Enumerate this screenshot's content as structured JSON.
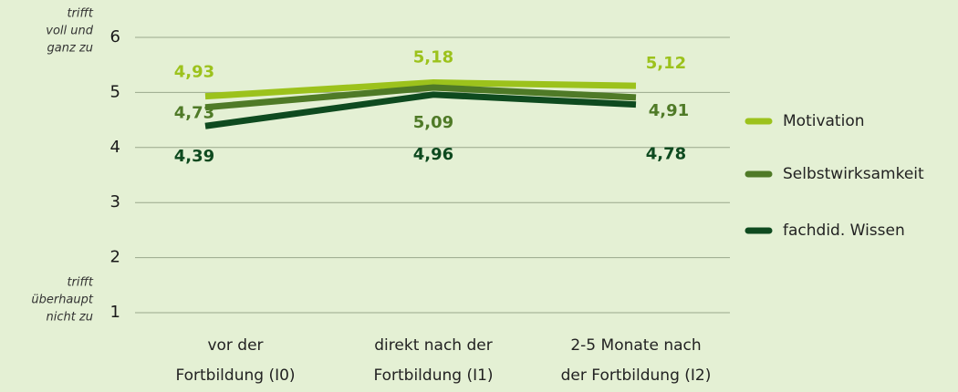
{
  "chart_data": {
    "type": "line",
    "categories": [
      [
        "vor der",
        "Fortbildung (I0)"
      ],
      [
        "direkt nach der",
        "Fortbildung (I1)"
      ],
      [
        "2-5 Monate nach",
        "der Fortbildung (I2)"
      ]
    ],
    "series": [
      {
        "name": "Motivation",
        "color": "#9cc21c",
        "values": [
          4.93,
          5.18,
          5.12
        ],
        "value_labels": [
          "4,93",
          "5,18",
          "5,12"
        ]
      },
      {
        "name": "Selbstwirksamkeit",
        "color": "#4f7a27",
        "values": [
          4.73,
          5.09,
          4.91
        ],
        "value_labels": [
          "4,73",
          "5,09",
          "4,91"
        ]
      },
      {
        "name": "fachdid. Wissen",
        "color": "#0e4a1f",
        "values": [
          4.39,
          4.96,
          4.78
        ],
        "value_labels": [
          "4,39",
          "4,96",
          "4,78"
        ]
      }
    ],
    "ylim": [
      1,
      6
    ],
    "yticks": [
      1,
      2,
      3,
      4,
      5,
      6
    ],
    "grid": true,
    "legend": "right",
    "annotations": [
      [
        "trifft",
        "voll und",
        "ganz zu"
      ],
      [
        "trifft",
        "überhaupt",
        "nicht zu"
      ]
    ]
  }
}
